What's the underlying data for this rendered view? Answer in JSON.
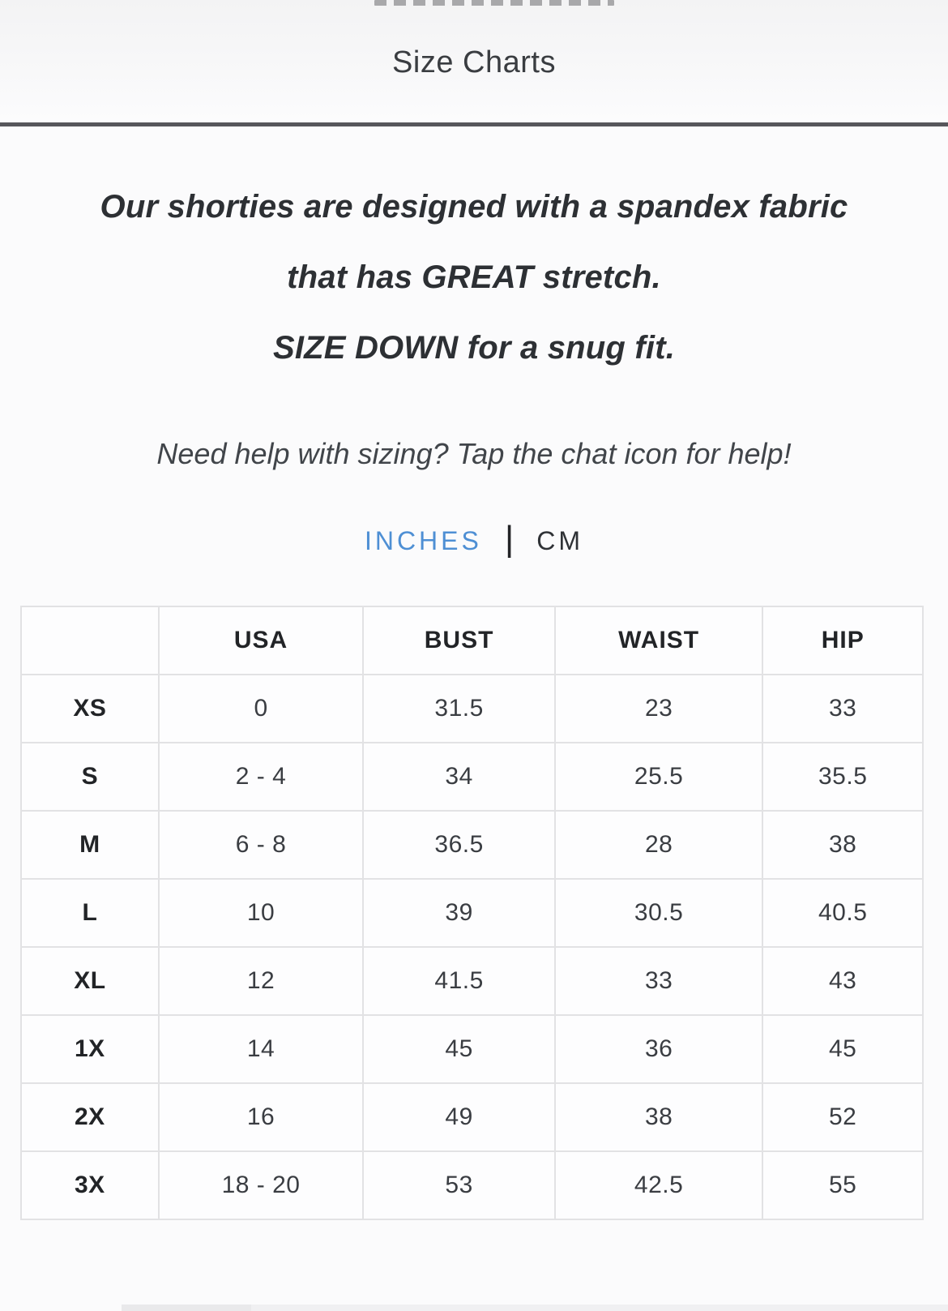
{
  "header": {
    "title": "Size Charts"
  },
  "intro": {
    "line1": "Our shorties are designed with a spandex fabric",
    "line2": "that has GREAT stretch.",
    "line3": "SIZE DOWN for a snug fit."
  },
  "help_text": "Need help with sizing? Tap the chat icon for help!",
  "unit_toggle": {
    "separator": "|",
    "active_color": "#4e8fd4",
    "options": [
      {
        "label": "INCHES",
        "active": true
      },
      {
        "label": "CM",
        "active": false
      }
    ]
  },
  "size_table": {
    "columns": [
      "",
      "USA",
      "BUST",
      "WAIST",
      "HIP"
    ],
    "rows": [
      {
        "size": "XS",
        "usa": "0",
        "bust": "31.5",
        "waist": "23",
        "hip": "33"
      },
      {
        "size": "S",
        "usa": "2 - 4",
        "bust": "34",
        "waist": "25.5",
        "hip": "35.5"
      },
      {
        "size": "M",
        "usa": "6 - 8",
        "bust": "36.5",
        "waist": "28",
        "hip": "38"
      },
      {
        "size": "L",
        "usa": "10",
        "bust": "39",
        "waist": "30.5",
        "hip": "40.5"
      },
      {
        "size": "XL",
        "usa": "12",
        "bust": "41.5",
        "waist": "33",
        "hip": "43"
      },
      {
        "size": "1X",
        "usa": "14",
        "bust": "45",
        "waist": "36",
        "hip": "45"
      },
      {
        "size": "2X",
        "usa": "16",
        "bust": "49",
        "waist": "38",
        "hip": "52"
      },
      {
        "size": "3X",
        "usa": "18 - 20",
        "bust": "53",
        "waist": "42.5",
        "hip": "55"
      }
    ]
  }
}
